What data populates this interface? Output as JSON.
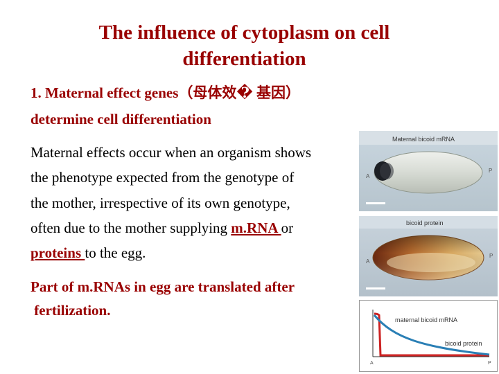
{
  "slide": {
    "title_line1": "The influence of cytoplasm on cell",
    "title_line2": "differentiation",
    "heading_line1": "1. Maternal effect genes（母体效� 基因）",
    "heading_line2": "determine cell differentiation",
    "body_line1": "Maternal effects occur when an organism shows",
    "body_line2": "the phenotype expected from the genotype of",
    "body_line3": "the mother, irrespective of its own genotype,",
    "body_line4_pre": "often due to the mother supplying ",
    "body_line4_link": "m.RNA ",
    "body_line4_post": "or",
    "body_line5_link": "proteins ",
    "body_line5_post": "to the egg.",
    "note_line1": "Part of m.RNAs in egg are translated after",
    "note_line2": " fertilization."
  },
  "figure": {
    "panel1_label": "Maternal bicoid mRNA",
    "panel1_left": "A",
    "panel1_right": "P",
    "panel2_label": "bicoid protein",
    "panel2_left": "A",
    "panel2_right": "P",
    "graph_series1": "maternal bicoid mRNA",
    "graph_series2": "bicoid protein",
    "graph_x_left": "A",
    "graph_x_right": "P"
  },
  "colors": {
    "accent": "#990000",
    "link": "#990000",
    "mrna_curve": "#cc2222",
    "protein_curve": "#2a7fb5"
  }
}
